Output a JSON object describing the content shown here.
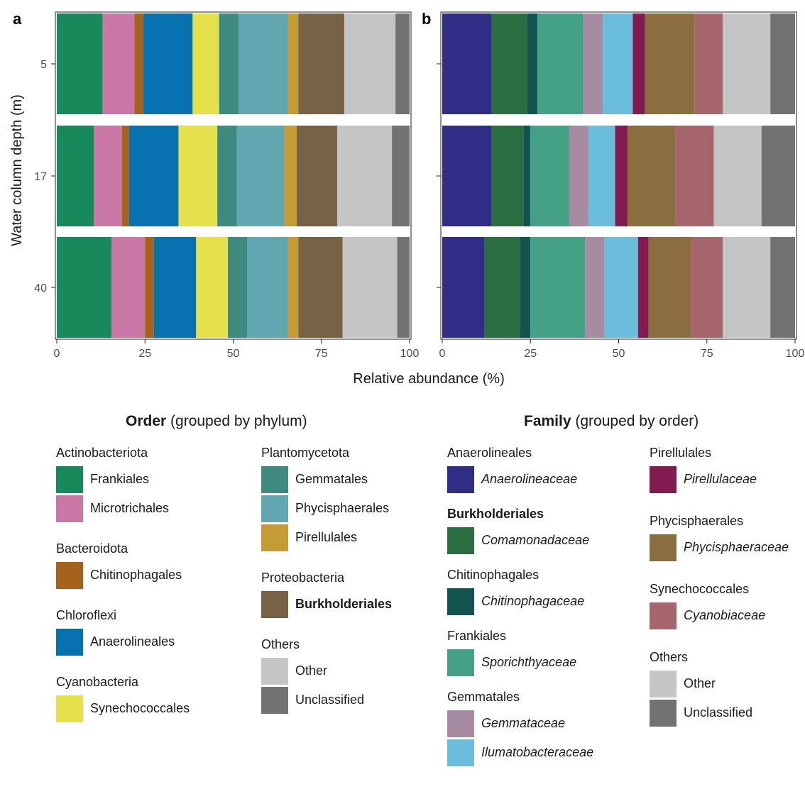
{
  "chart_data": [
    {
      "type": "bar",
      "orientation": "horizontal-stacked",
      "panel_label": "a",
      "xlabel": "Relative abundance (%)",
      "ylabel": "Water column depth (m)",
      "xlim": [
        0,
        100
      ],
      "x_ticks": [
        "0",
        "25",
        "50",
        "75",
        "100"
      ],
      "categories": [
        "5",
        "17",
        "40"
      ],
      "series": [
        {
          "name": "Frankiales",
          "color": "#17895a",
          "values": [
            13.0,
            10.5,
            15.5
          ]
        },
        {
          "name": "Microtrichales",
          "color": "#c977a4",
          "values": [
            9.0,
            8.0,
            9.5
          ]
        },
        {
          "name": "Chitinophagales",
          "color": "#a6621c",
          "values": [
            2.5,
            2.0,
            2.5
          ]
        },
        {
          "name": "Anaerolineales",
          "color": "#0872b0",
          "values": [
            14.0,
            14.0,
            12.0
          ]
        },
        {
          "name": "Synechococcales",
          "color": "#e6e04c",
          "values": [
            7.5,
            11.0,
            9.0
          ]
        },
        {
          "name": "Gemmatales",
          "color": "#3f8a7f",
          "values": [
            5.5,
            5.5,
            5.5
          ]
        },
        {
          "name": "Phycisphaerales",
          "color": "#61a6b1",
          "values": [
            14.0,
            13.5,
            11.5
          ]
        },
        {
          "name": "Pirellulales",
          "color": "#c49c35",
          "values": [
            3.0,
            3.5,
            3.0
          ]
        },
        {
          "name": "Burkholderiales",
          "color": "#776245",
          "values": [
            13.0,
            11.5,
            12.5
          ]
        },
        {
          "name": "Other",
          "color": "#c4c5c4",
          "values": [
            14.5,
            15.5,
            15.5
          ]
        },
        {
          "name": "Unclassified",
          "color": "#727273",
          "values": [
            4.0,
            5.0,
            3.5
          ]
        }
      ]
    },
    {
      "type": "bar",
      "orientation": "horizontal-stacked",
      "panel_label": "b",
      "xlabel": "Relative abundance (%)",
      "xlim": [
        0,
        100
      ],
      "x_ticks": [
        "0",
        "25",
        "50",
        "75",
        "100"
      ],
      "categories": [
        "5",
        "17",
        "40"
      ],
      "series": [
        {
          "name": "Anaerolineaceae",
          "color": "#302d86",
          "values": [
            14.0,
            14.0,
            12.0
          ]
        },
        {
          "name": "Comamonadaceae",
          "color": "#2a6e41",
          "values": [
            10.0,
            9.0,
            10.0
          ]
        },
        {
          "name": "Chitinophagaceae",
          "color": "#12524f",
          "values": [
            3.0,
            2.0,
            3.0
          ]
        },
        {
          "name": "Sporichthyaceae",
          "color": "#45a185",
          "values": [
            13.0,
            11.0,
            15.5
          ]
        },
        {
          "name": "Gemmataceae",
          "color": "#a68ba3",
          "values": [
            5.5,
            5.5,
            5.5
          ]
        },
        {
          "name": "Ilumatobacteraceae",
          "color": "#6abedb",
          "values": [
            8.5,
            7.5,
            9.5
          ]
        },
        {
          "name": "Pirellulaceae",
          "color": "#821c50",
          "values": [
            3.5,
            3.5,
            3.0
          ]
        },
        {
          "name": "Phycisphaeraceae",
          "color": "#8b6e3f",
          "values": [
            14.0,
            13.5,
            12.0
          ]
        },
        {
          "name": "Cyanobiaceae",
          "color": "#a7666b",
          "values": [
            8.0,
            11.0,
            9.0
          ]
        },
        {
          "name": "Other",
          "color": "#c4c5c4",
          "values": [
            13.5,
            13.5,
            13.5
          ]
        },
        {
          "name": "Unclassified",
          "color": "#727273",
          "values": [
            7.0,
            9.5,
            7.0
          ]
        }
      ]
    }
  ],
  "legend_order": {
    "title_bold": "Order",
    "title_rest": " (grouped by phylum)",
    "columns": [
      [
        {
          "group": "Actinobacteriota",
          "items": [
            {
              "label": "Frankiales",
              "color": "#17895a"
            },
            {
              "label": "Microtrichales",
              "color": "#c977a4"
            }
          ]
        },
        {
          "group": "Bacteroidota",
          "items": [
            {
              "label": "Chitinophagales",
              "color": "#a6621c"
            }
          ]
        },
        {
          "group": "Chloroflexi",
          "items": [
            {
              "label": "Anaerolineales",
              "color": "#0872b0"
            }
          ]
        },
        {
          "group": "Cyanobacteria",
          "items": [
            {
              "label": "Synechococcales",
              "color": "#e6e04c"
            }
          ]
        }
      ],
      [
        {
          "group": "Plantomycetota",
          "items": [
            {
              "label": "Gemmatales",
              "color": "#3f8a7f"
            },
            {
              "label": "Phycisphaerales",
              "color": "#61a6b1"
            },
            {
              "label": "Pirellulales",
              "color": "#c49c35"
            }
          ]
        },
        {
          "group": "Proteobacteria",
          "items": [
            {
              "label": "Burkholderiales",
              "color": "#776245",
              "bold": true
            }
          ]
        },
        {
          "group": "Others",
          "items": [
            {
              "label": "Other",
              "color": "#c4c5c4"
            },
            {
              "label": "Unclassified",
              "color": "#727273"
            }
          ]
        }
      ]
    ]
  },
  "legend_family": {
    "title_bold": "Family",
    "title_rest": " (grouped by order)",
    "columns": [
      [
        {
          "group": "Anaerolineales",
          "items": [
            {
              "label": "Anaerolineaceae",
              "color": "#302d86",
              "italic": true
            }
          ]
        },
        {
          "group": "Burkholderiales",
          "group_bold": true,
          "items": [
            {
              "label": "Comamonadaceae",
              "color": "#2a6e41",
              "italic": true
            }
          ]
        },
        {
          "group": "Chitinophagales",
          "items": [
            {
              "label": "Chitinophagaceae",
              "color": "#12524f",
              "italic": true
            }
          ]
        },
        {
          "group": "Frankiales",
          "items": [
            {
              "label": "Sporichthyaceae",
              "color": "#45a185",
              "italic": true
            }
          ]
        },
        {
          "group": "Gemmatales",
          "items": [
            {
              "label": "Gemmataceae",
              "color": "#a68ba3",
              "italic": true
            },
            {
              "label": "Ilumatobacteraceae",
              "color": "#6abedb",
              "italic": true
            }
          ]
        }
      ],
      [
        {
          "group": "Pirellulales",
          "items": [
            {
              "label": "Pirellulaceae",
              "color": "#821c50",
              "italic": true
            }
          ]
        },
        {
          "group": "Phycisphaerales",
          "items": [
            {
              "label": "Phycisphaeraceae",
              "color": "#8b6e3f",
              "italic": true
            }
          ]
        },
        {
          "group": "Synechococcales",
          "items": [
            {
              "label": "Cyanobiaceae",
              "color": "#a7666b",
              "italic": true
            }
          ]
        },
        {
          "group": "Others",
          "items": [
            {
              "label": "Other",
              "color": "#c4c5c4"
            },
            {
              "label": "Unclassified",
              "color": "#727273"
            }
          ]
        }
      ]
    ]
  }
}
